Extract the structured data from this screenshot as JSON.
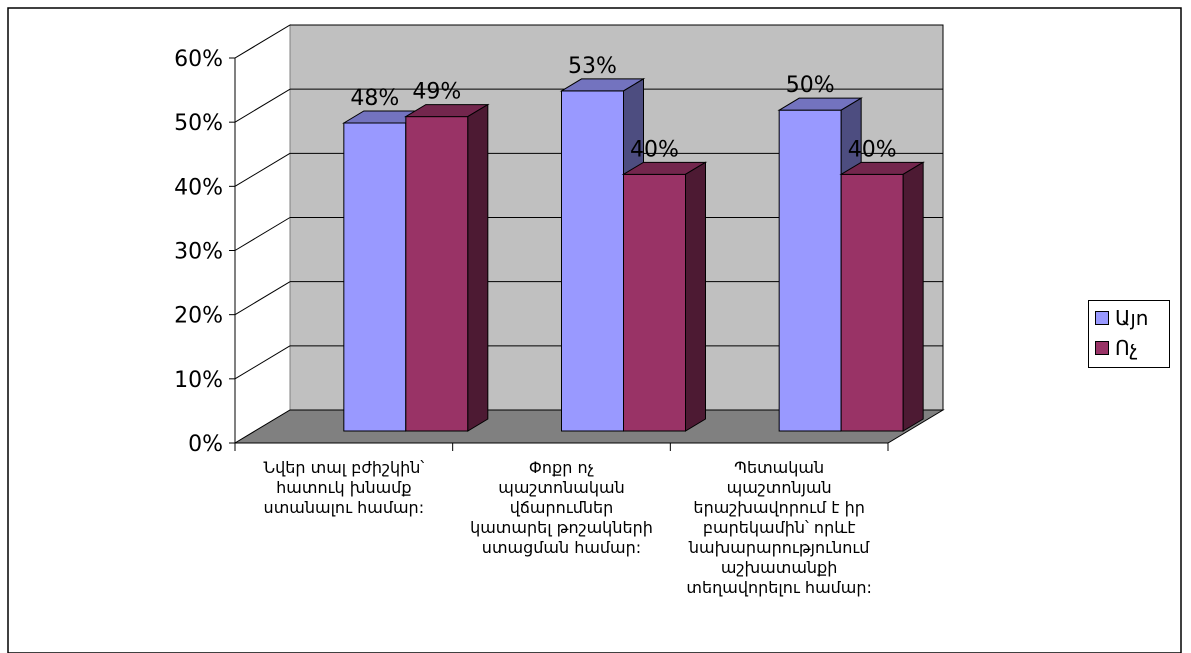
{
  "chart_data": {
    "type": "bar",
    "categories": [
      "Նվեր տալ բժիշկին՝\nհատուկ խնամք\nստանալու համար:",
      "Փոքր ոչ\nպաշտոնական\nվճարումներ\nկատարել թոշակների\nստացման համար:",
      "Պետական\nպաշտոնյան\nերաշխավորում է իր\nբարեկամին՝ որևէ\nնախարարությունում\nաշխատանքի\nտեղավորելու համար:"
    ],
    "series": [
      {
        "name": "Այո",
        "values": [
          48,
          53,
          50
        ],
        "labels": [
          "48%",
          "53%",
          "50%"
        ],
        "color": "#9999ff"
      },
      {
        "name": "Ոչ",
        "values": [
          49,
          40,
          40
        ],
        "labels": [
          "49%",
          "40%",
          "40%"
        ],
        "color": "#993366"
      }
    ],
    "yticks": [
      "0%",
      "10%",
      "20%",
      "30%",
      "40%",
      "50%",
      "60%"
    ],
    "ylim": [
      0,
      60
    ],
    "grid": true,
    "legend_position": "right",
    "wall_color": "#c0c0c0",
    "floor_color": "#808080"
  }
}
